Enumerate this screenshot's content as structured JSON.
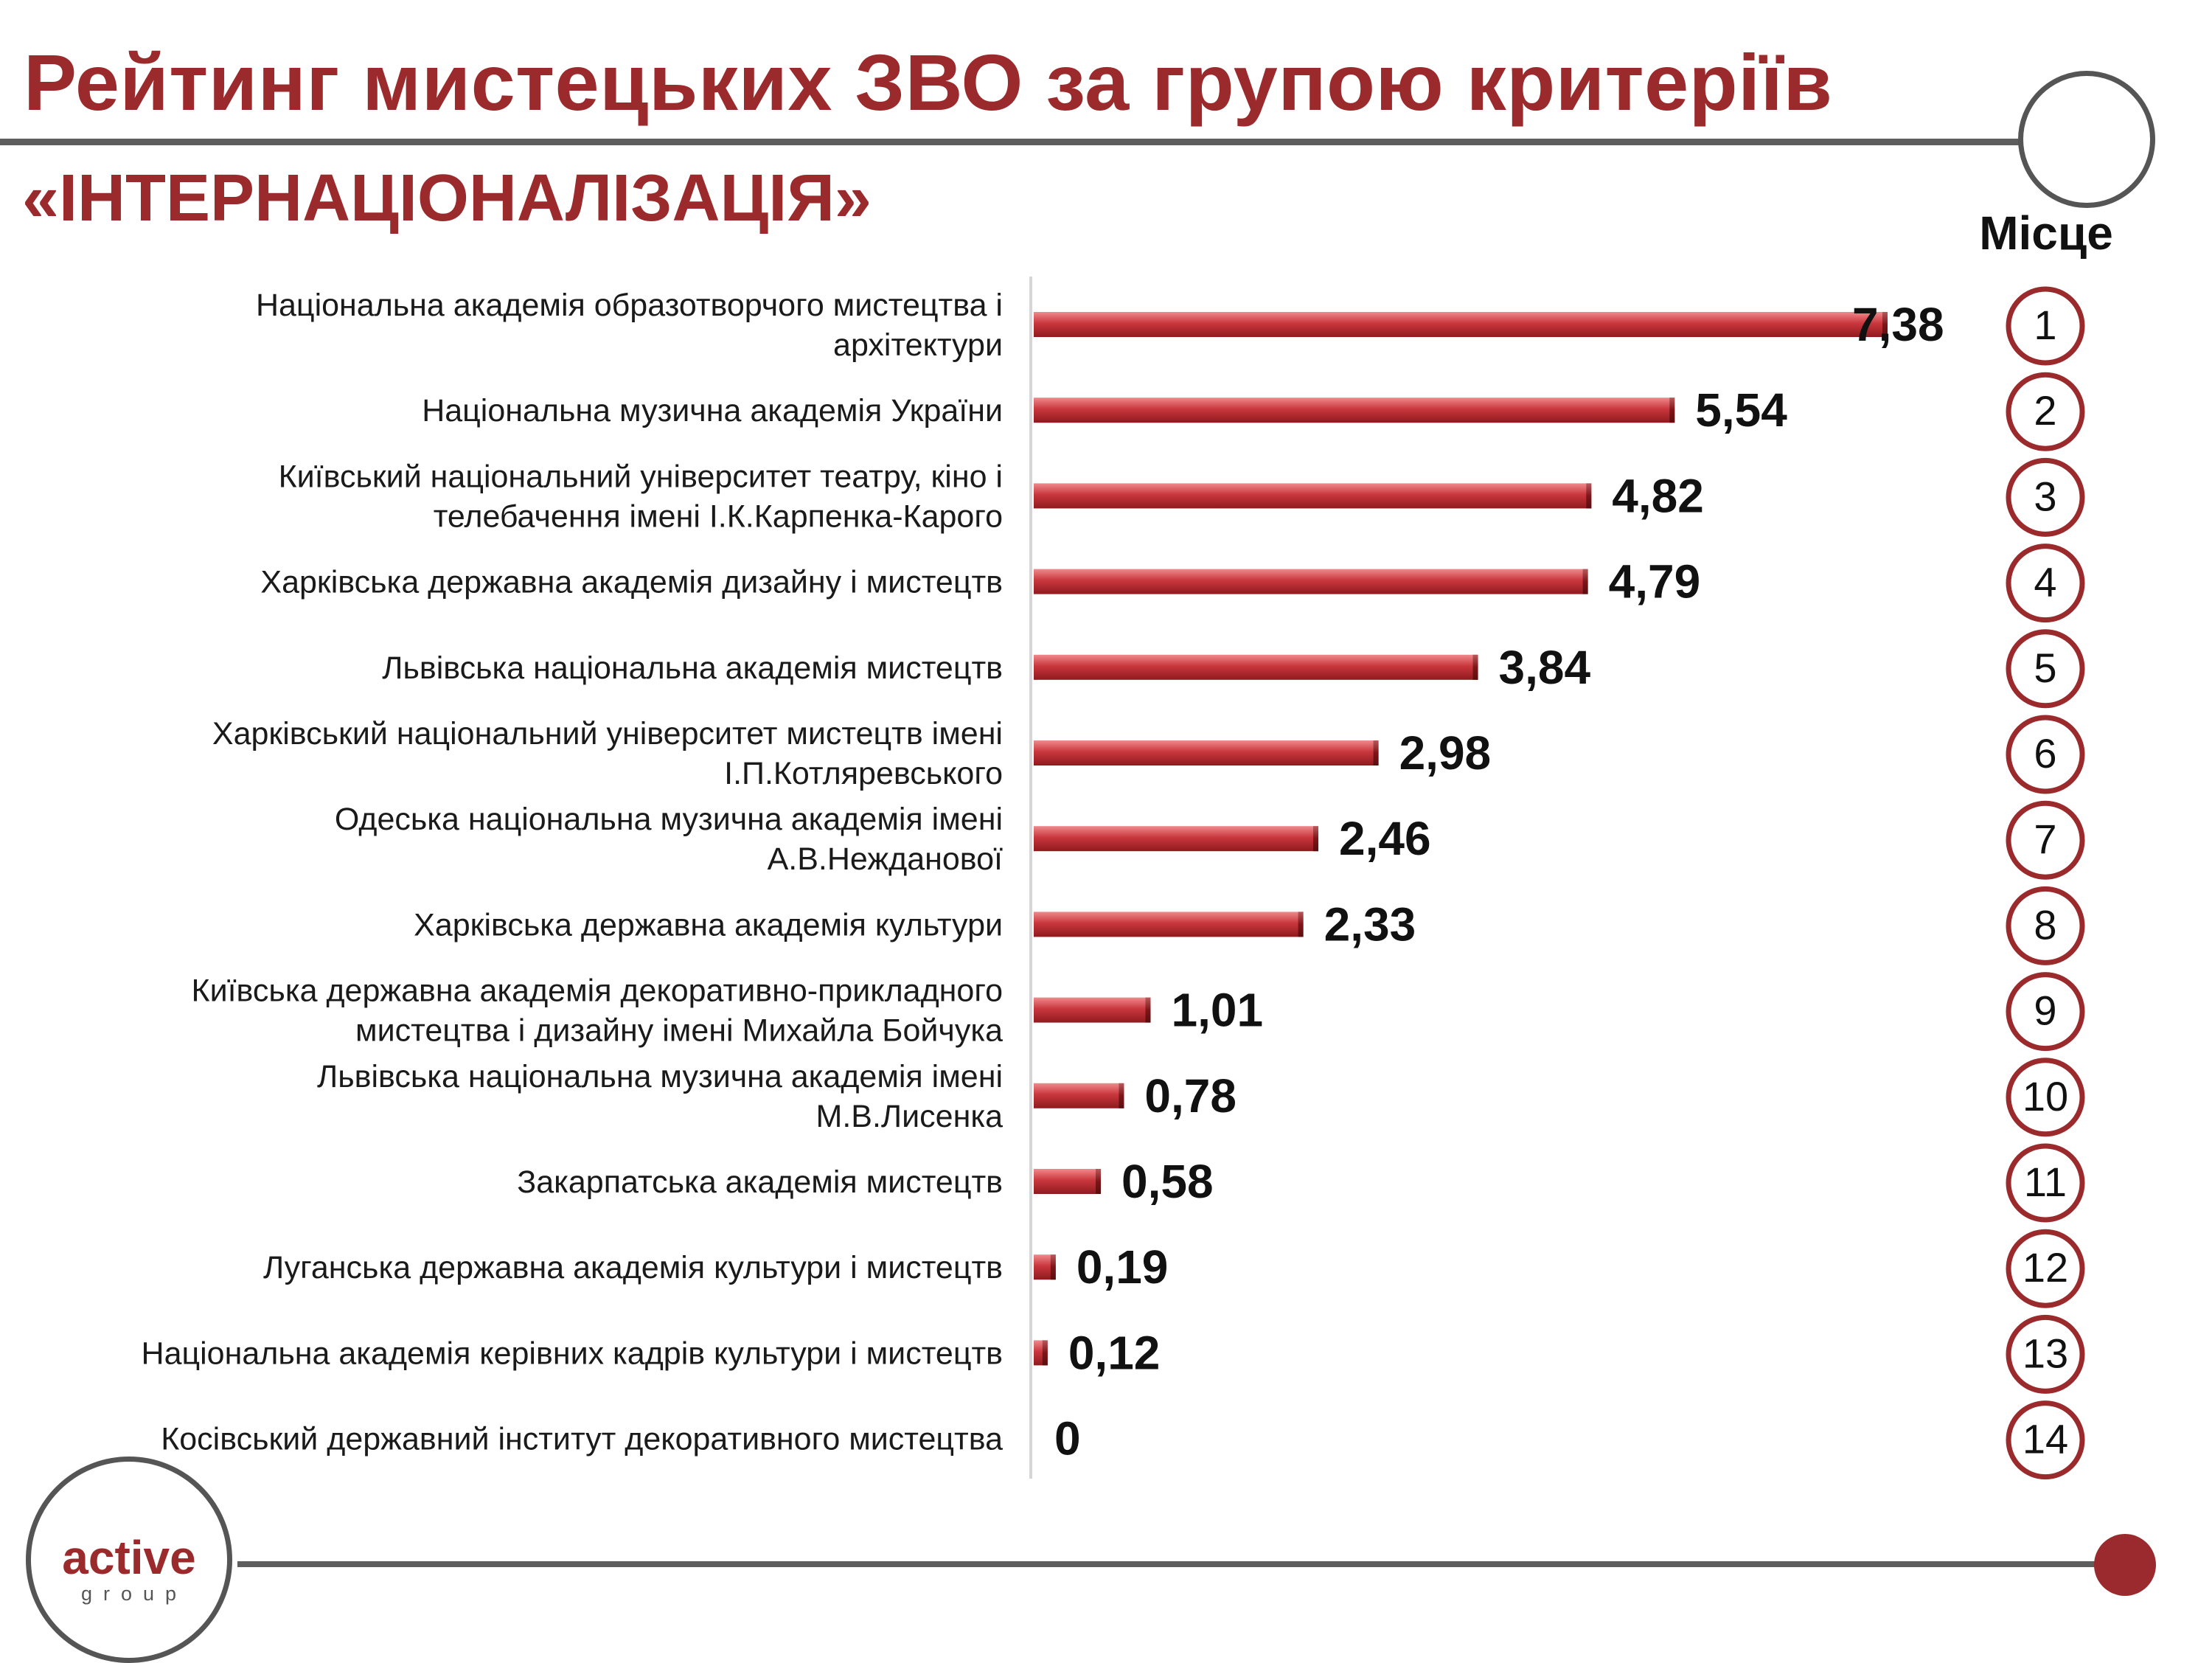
{
  "title": {
    "line1": "Рейтинг мистецьких ЗВО за групою критеріїв",
    "line2": "«ІНТЕРНАЦІОНАЛІЗАЦІЯ»"
  },
  "place_header": "Місце",
  "logo": {
    "main": "active",
    "sub": "group"
  },
  "colors": {
    "accent": "#9b2a2c",
    "bar": "#c9373d",
    "bar_light": "#ef8a8d",
    "bar_dark": "#8f1a1e",
    "lines": "#5e5e5e"
  },
  "chart_data": {
    "type": "bar",
    "orientation": "horizontal",
    "categories": [
      "Національна академія образотворчого мистецтва і архітектури",
      "Національна музична академія України",
      "Київський національний університет театру, кіно і телебачення імені І.К.Карпенка-Карого",
      "Харківська державна академія дизайну і мистецтв",
      "Львівська національна академія мистецтв",
      "Харківський національний університет мистецтв імені І.П.Котляревського",
      "Одеська національна музична академія імені А.В.Нежданової",
      "Харківська державна академія культури",
      "Київська державна академія декоративно-прикладного мистецтва і дизайну імені Михайла Бойчука",
      "Львівська національна музична академія імені М.В.Лисенка",
      "Закарпатська академія мистецтв",
      "Луганська державна академія культури і мистецтв",
      "Національна академія керівних кадрів культури і мистецтв",
      "Косівський державний інститут декоративного мистецтва"
    ],
    "category_lines": [
      [
        "Національна академія образотворчого мистецтва і",
        "архітектури"
      ],
      [
        "Національна музична академія України"
      ],
      [
        "Київський національний університет театру, кіно і",
        "телебачення імені І.К.Карпенка-Карого"
      ],
      [
        "Харківська державна академія дизайну і мистецтв"
      ],
      [
        "Львівська національна академія мистецтв"
      ],
      [
        "Харківський національний університет мистецтв імені",
        "І.П.Котляревського"
      ],
      [
        "Одеська національна музична академія імені",
        "А.В.Нежданової"
      ],
      [
        "Харківська державна академія культури"
      ],
      [
        "Київська державна академія декоративно-прикладного",
        "мистецтва і дизайну імені Михайла Бойчука"
      ],
      [
        "Львівська національна музична академія імені",
        "М.В.Лисенка"
      ],
      [
        "Закарпатська академія мистецтв"
      ],
      [
        "Луганська державна академія культури і мистецтв"
      ],
      [
        "Національна академія керівних кадрів культури і мистецтв"
      ],
      [
        "Косівський державний інститут декоративного мистецтва"
      ]
    ],
    "values": [
      7.38,
      5.54,
      4.82,
      4.79,
      3.84,
      2.98,
      2.46,
      2.33,
      1.01,
      0.78,
      0.58,
      0.19,
      0.12,
      0
    ],
    "value_labels": [
      "7,38",
      "5,54",
      "4,82",
      "4,79",
      "3,84",
      "2,98",
      "2,46",
      "2,33",
      "1,01",
      "0,78",
      "0,58",
      "0,19",
      "0,12",
      "0"
    ],
    "places": [
      "1",
      "2",
      "3",
      "4",
      "5",
      "6",
      "7",
      "8",
      "9",
      "10",
      "11",
      "12",
      "13",
      "14"
    ],
    "xlim": [
      0,
      7.38
    ],
    "grid": false,
    "legend": "none"
  }
}
